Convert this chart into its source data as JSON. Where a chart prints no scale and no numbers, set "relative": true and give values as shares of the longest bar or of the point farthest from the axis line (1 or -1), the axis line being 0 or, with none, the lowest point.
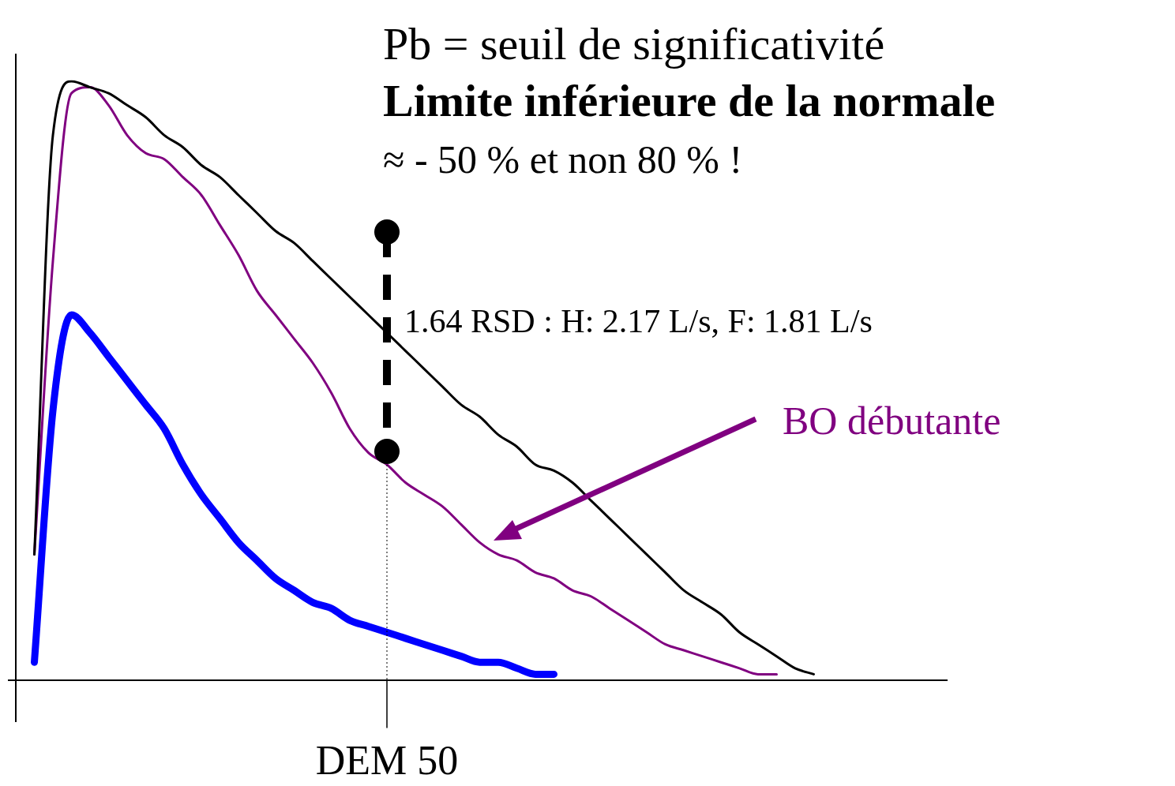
{
  "chart_data": {
    "type": "line",
    "title": "Pb = seuil de significativité",
    "subtitle": "Limite inférieure de la normale",
    "relative": true,
    "legend": false,
    "marker": "none",
    "line_style": "solid",
    "annotations": [
      "≈ - 50 % et non 80 % !",
      "DEM 50",
      "1.64 RSD : H: 2.17 L/s, F: 1.81 L/s"
    ],
    "categories": [
      null,
      null,
      null,
      null,
      null,
      null,
      null,
      null,
      null,
      null,
      null,
      null,
      null,
      null,
      null,
      null,
      null,
      null,
      null,
      null,
      null,
      null,
      null,
      null,
      null,
      null,
      null,
      null,
      null,
      null,
      null,
      null,
      null,
      null,
      null,
      null,
      null,
      null,
      null,
      null,
      null,
      null,
      null,
      null,
      null,
      null,
      null,
      null,
      null,
      null,
      null
    ],
    "series": [
      {
        "color": "#000000",
        "values": [
          null,
          0.21,
          0.91,
          1.0,
          0.99,
          0.98,
          0.96,
          0.94,
          0.91,
          0.89,
          0.86,
          0.84,
          0.81,
          0.78,
          0.75,
          0.73,
          0.7,
          0.67,
          0.64,
          0.61,
          0.58,
          0.55,
          0.52,
          0.49,
          0.46,
          0.44,
          0.41,
          0.39,
          0.36,
          0.35,
          0.33,
          0.3,
          0.27,
          0.24,
          0.21,
          0.18,
          0.15,
          0.13,
          0.11,
          0.08,
          0.06,
          0.04,
          0.02,
          0.01,
          null,
          null,
          null,
          null,
          null,
          null,
          null
        ]
      },
      {
        "name": "BO débutante",
        "color": "#800080",
        "values": [
          null,
          0.21,
          0.7,
          0.98,
          0.99,
          0.96,
          0.91,
          0.88,
          0.87,
          0.84,
          0.81,
          0.76,
          0.71,
          0.65,
          0.61,
          0.57,
          0.53,
          0.48,
          0.42,
          0.38,
          0.36,
          0.33,
          0.31,
          0.29,
          0.26,
          0.23,
          0.21,
          0.2,
          0.18,
          0.17,
          0.15,
          0.14,
          0.12,
          0.1,
          0.08,
          0.06,
          0.05,
          0.04,
          0.03,
          0.02,
          0.01,
          0.01,
          null,
          null,
          null,
          null,
          null,
          null,
          null,
          null,
          null
        ]
      },
      {
        "color": "#0000ff",
        "values": [
          null,
          0.03,
          0.45,
          0.61,
          0.58,
          0.54,
          0.5,
          0.46,
          0.42,
          0.36,
          0.31,
          0.27,
          0.23,
          0.2,
          0.17,
          0.15,
          0.13,
          0.12,
          0.1,
          0.09,
          0.08,
          0.07,
          0.06,
          0.05,
          0.04,
          0.03,
          0.03,
          0.02,
          0.01,
          0.01,
          null,
          null,
          null,
          null,
          null,
          null,
          null,
          null,
          null,
          null,
          null,
          null,
          null,
          null,
          null,
          null,
          null,
          null,
          null,
          null,
          null
        ]
      }
    ]
  }
}
